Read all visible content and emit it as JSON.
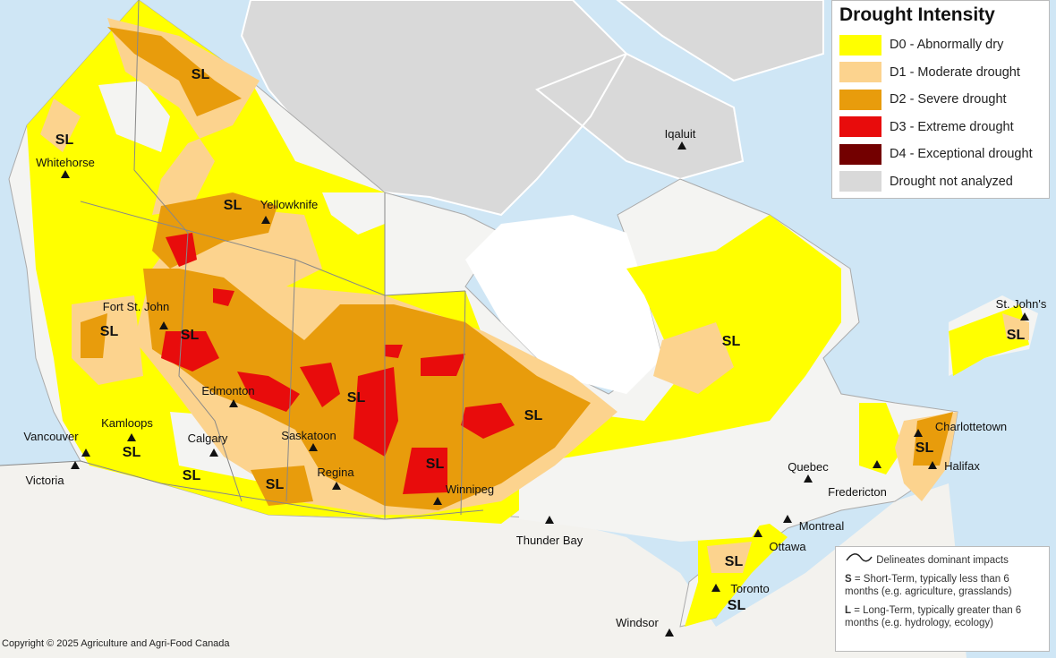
{
  "legend": {
    "title": "Drought Intensity",
    "items": [
      {
        "label": "D0 - Abnormally dry",
        "color": "#ffff00"
      },
      {
        "label": "D1 - Moderate drought",
        "color": "#fcd38e"
      },
      {
        "label": "D2 - Severe drought",
        "color": "#e89c0c"
      },
      {
        "label": "D3 - Extreme drought",
        "color": "#e80c0c"
      },
      {
        "label": "D4 - Exceptional drought",
        "color": "#730000"
      },
      {
        "label": "Drought not analyzed",
        "color": "#d9d9d9"
      }
    ]
  },
  "notes": {
    "impacts": "Delineates dominant impacts",
    "s_key": "S",
    "s_text": " = Short-Term, typically less than 6 months (e.g. agriculture, grasslands)",
    "l_key": "L",
    "l_text": " = Long-Term, typically greater  than 6 months (e.g. hydrology, ecology)"
  },
  "cities": [
    "Whitehorse",
    "Yellowknife",
    "Iqaluit",
    "Fort St. John",
    "Edmonton",
    "Kamloops",
    "Calgary",
    "Saskatoon",
    "Regina",
    "Winnipeg",
    "Vancouver",
    "Victoria",
    "Thunder Bay",
    "Quebec",
    "Montreal",
    "Ottawa",
    "Toronto",
    "Windsor",
    "Fredericton",
    "Halifax",
    "Charlottetown",
    "St. John's"
  ],
  "impact_label": "SL",
  "copyright": "Copyright © 2025 Agriculture and Agri-Food Canada",
  "colors": {
    "water": "#cfe6f5",
    "land": "#f4f4f2",
    "not_analyzed": "#d9d9d9"
  }
}
